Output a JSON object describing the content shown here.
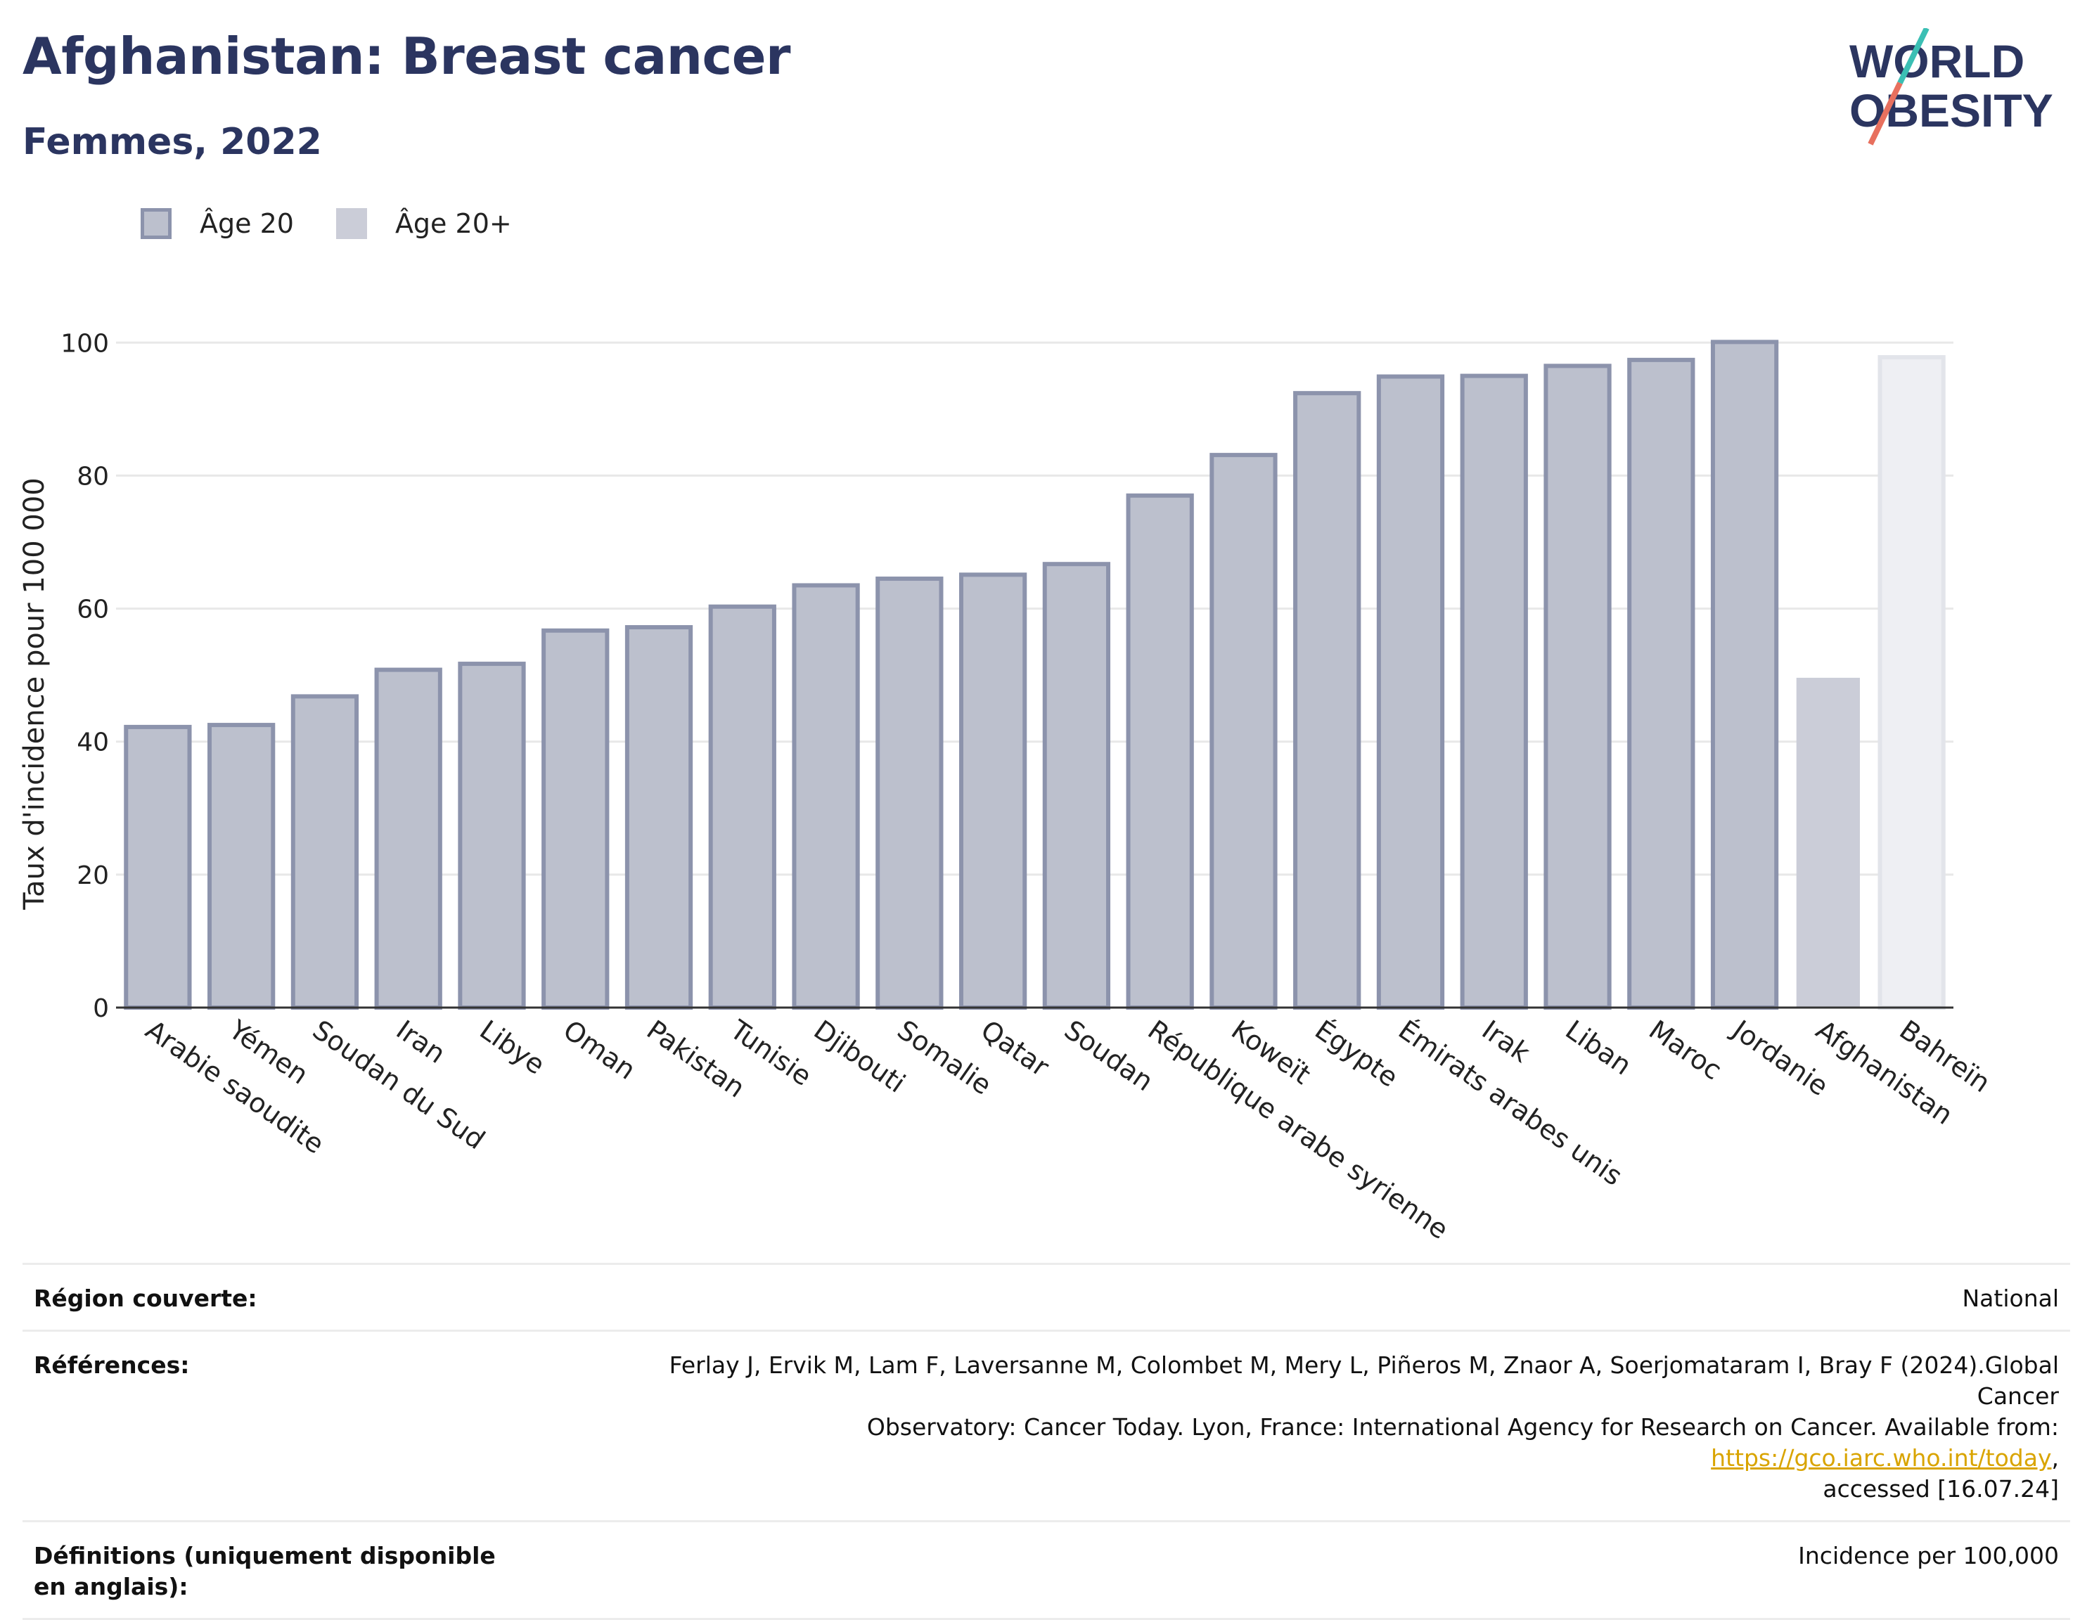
{
  "header": {
    "title": "Afghanistan: Breast cancer",
    "subtitle": "Femmes, 2022"
  },
  "logo": {
    "line1": "WORLD",
    "line2": "OBESITY"
  },
  "legend": {
    "age20_label": "Âge 20",
    "age20plus_label": "Âge 20+"
  },
  "colors": {
    "bar_fill": "#bcc0cd",
    "bar_stroke": "#8c93ac",
    "afghanistan_fill": "#cbcdd8",
    "bahrain_fill": "#eeeff3",
    "bahrain_stroke": "#e2e4ea",
    "grid": "#e8e8e8",
    "axis": "#333333",
    "title": "#2b3560"
  },
  "chart_data": {
    "type": "bar",
    "ylabel": "Taux d'incidence pour 100 000",
    "xlabel": "",
    "ylim": [
      0,
      105
    ],
    "yticks": [
      0,
      20,
      40,
      60,
      80,
      100
    ],
    "grid": true,
    "legend_position": "top-left",
    "categories": [
      "Arabie saoudite",
      "Yémen",
      "Soudan du Sud",
      "Iran",
      "Libye",
      "Oman",
      "Pakistan",
      "Tunisie",
      "Djibouti",
      "Somalie",
      "Qatar",
      "Soudan",
      "République arabe syrienne",
      "Koweït",
      "Égypte",
      "Émirats arabes unis",
      "Irak",
      "Liban",
      "Maroc",
      "Jordanie",
      "Afghanistan",
      "Bahreïn"
    ],
    "values": [
      42.2,
      42.5,
      46.8,
      50.8,
      51.7,
      56.7,
      57.2,
      60.3,
      63.5,
      64.5,
      65.1,
      66.7,
      77.0,
      83.1,
      92.4,
      94.9,
      95.0,
      96.5,
      97.4,
      100.1,
      49.6,
      97.8
    ],
    "series_style": [
      "age20",
      "age20",
      "age20",
      "age20",
      "age20",
      "age20",
      "age20",
      "age20",
      "age20",
      "age20",
      "age20",
      "age20",
      "age20",
      "age20",
      "age20",
      "age20",
      "age20",
      "age20",
      "age20",
      "age20",
      "afghanistan",
      "bahrain"
    ]
  },
  "metadata": {
    "region_label": "Région couverte:",
    "region_value": "National",
    "references_label": "Références:",
    "references_text1": "Ferlay J, Ervik M, Lam F, Laversanne M, Colombet M, Mery L, Piñeros M, Znaor A, Soerjomataram I, Bray F (2024).Global Cancer",
    "references_text2": "Observatory: Cancer Today. Lyon, France: International Agency for Research on Cancer. Available from: ",
    "references_link": "https://gco.iarc.who.int/today",
    "references_text3": ",",
    "references_text4": "accessed [16.07.24]",
    "definitions_label": "Définitions (uniquement disponible en anglais):",
    "definitions_value": "Incidence per 100,000"
  }
}
